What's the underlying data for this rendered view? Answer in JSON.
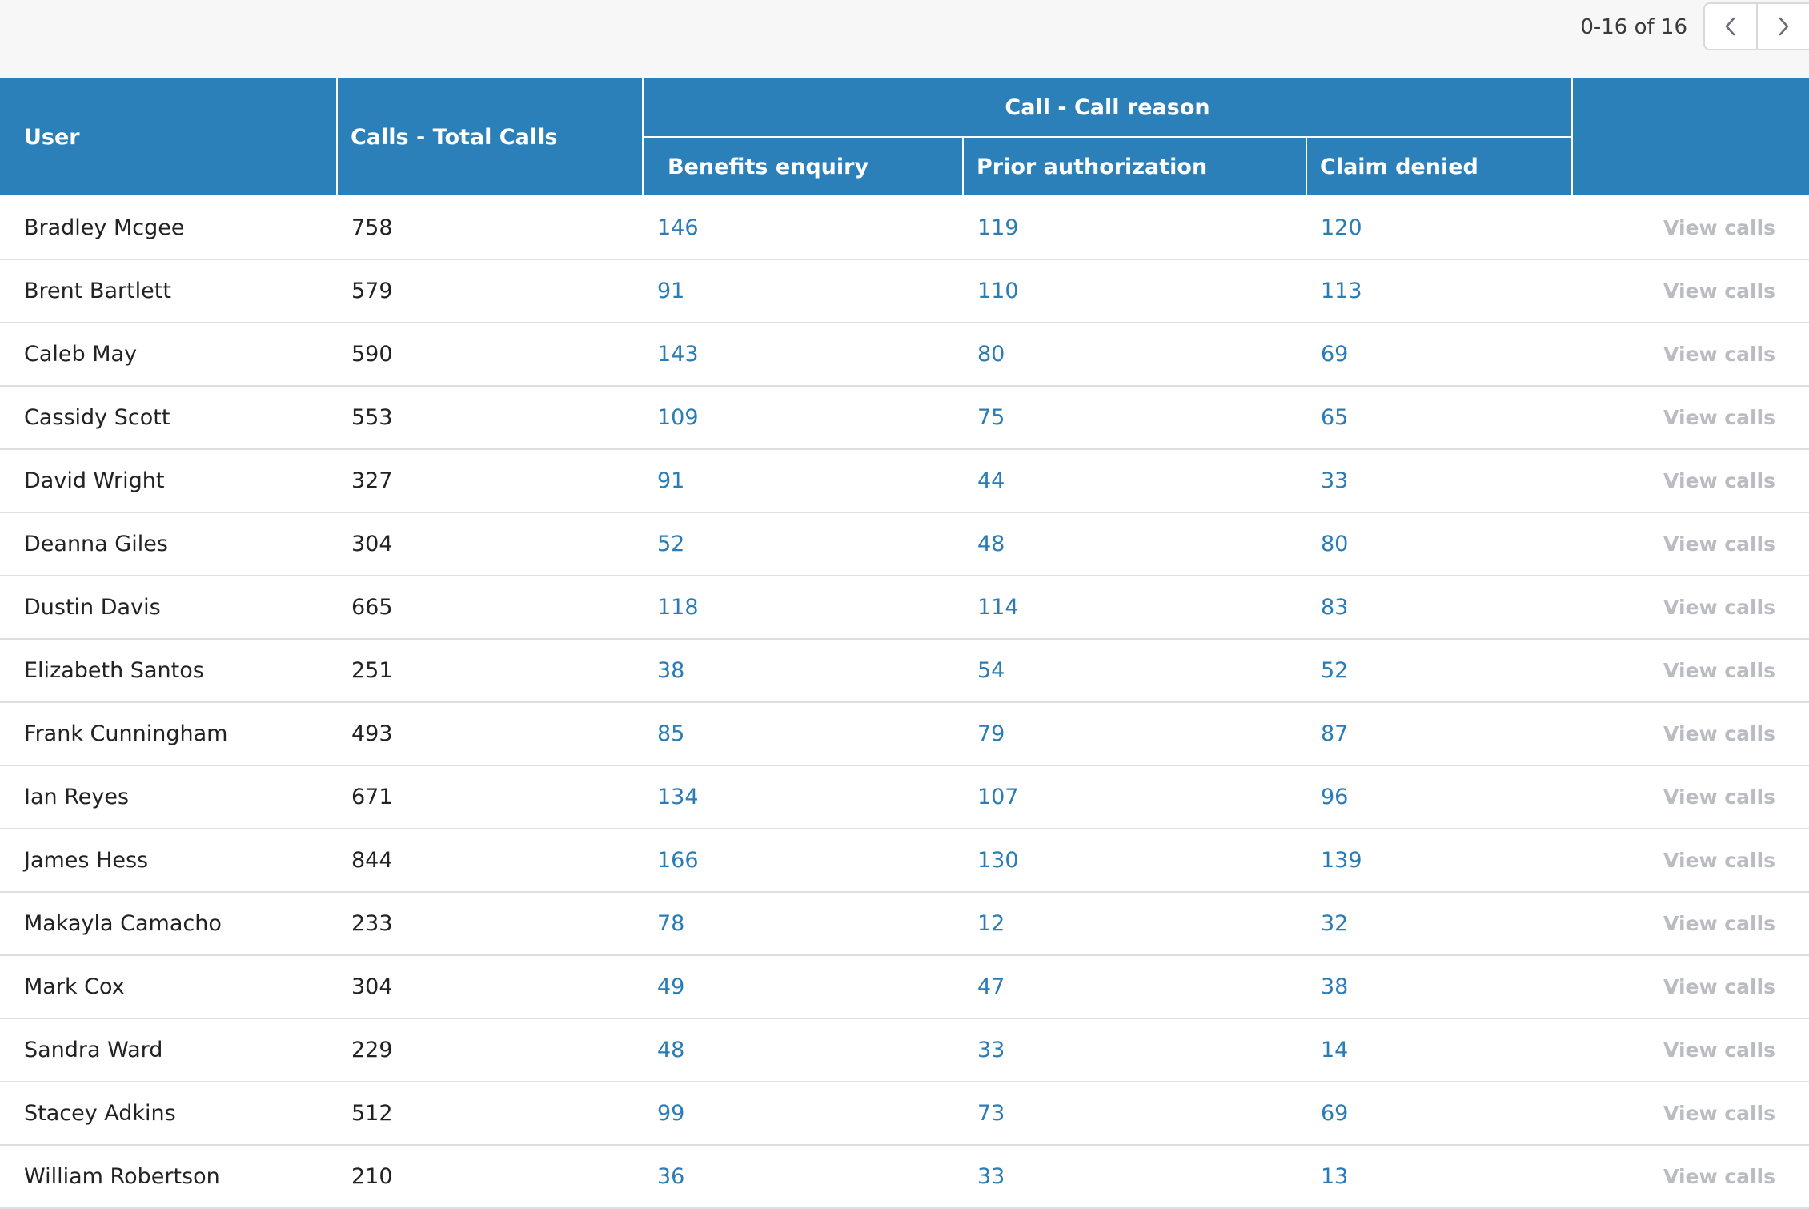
{
  "pagination": {
    "label": "0-16 of 16",
    "prev_icon": "chevron-left-icon",
    "next_icon": "chevron-right-icon"
  },
  "table": {
    "headers": {
      "user": "User",
      "total_calls": "Calls - Total Calls",
      "call_reason_group": "Call - Call reason",
      "benefits_enquiry": "Benefits enquiry",
      "prior_authorization": "Prior authorization",
      "claim_denied": "Claim denied",
      "action": ""
    },
    "action_label": "View calls",
    "rows": [
      {
        "user": "Bradley Mcgee",
        "total": "758",
        "benefits": "146",
        "prior": "119",
        "claim": "120"
      },
      {
        "user": "Brent Bartlett",
        "total": "579",
        "benefits": "91",
        "prior": "110",
        "claim": "113"
      },
      {
        "user": "Caleb May",
        "total": "590",
        "benefits": "143",
        "prior": "80",
        "claim": "69"
      },
      {
        "user": "Cassidy Scott",
        "total": "553",
        "benefits": "109",
        "prior": "75",
        "claim": "65"
      },
      {
        "user": "David Wright",
        "total": "327",
        "benefits": "91",
        "prior": "44",
        "claim": "33"
      },
      {
        "user": "Deanna Giles",
        "total": "304",
        "benefits": "52",
        "prior": "48",
        "claim": "80"
      },
      {
        "user": "Dustin Davis",
        "total": "665",
        "benefits": "118",
        "prior": "114",
        "claim": "83"
      },
      {
        "user": "Elizabeth Santos",
        "total": "251",
        "benefits": "38",
        "prior": "54",
        "claim": "52"
      },
      {
        "user": "Frank Cunningham",
        "total": "493",
        "benefits": "85",
        "prior": "79",
        "claim": "87"
      },
      {
        "user": "Ian Reyes",
        "total": "671",
        "benefits": "134",
        "prior": "107",
        "claim": "96"
      },
      {
        "user": "James Hess",
        "total": "844",
        "benefits": "166",
        "prior": "130",
        "claim": "139"
      },
      {
        "user": "Makayla Camacho",
        "total": "233",
        "benefits": "78",
        "prior": "12",
        "claim": "32"
      },
      {
        "user": "Mark Cox",
        "total": "304",
        "benefits": "49",
        "prior": "47",
        "claim": "38"
      },
      {
        "user": "Sandra Ward",
        "total": "229",
        "benefits": "48",
        "prior": "33",
        "claim": "14"
      },
      {
        "user": "Stacey Adkins",
        "total": "512",
        "benefits": "99",
        "prior": "73",
        "claim": "69"
      },
      {
        "user": "William Robertson",
        "total": "210",
        "benefits": "36",
        "prior": "33",
        "claim": "13"
      }
    ]
  },
  "colors": {
    "header_bg": "#2b80b9",
    "link": "#2a7cb6",
    "action_text": "#b9bcc1",
    "topbar_bg": "#f7f7f8"
  }
}
